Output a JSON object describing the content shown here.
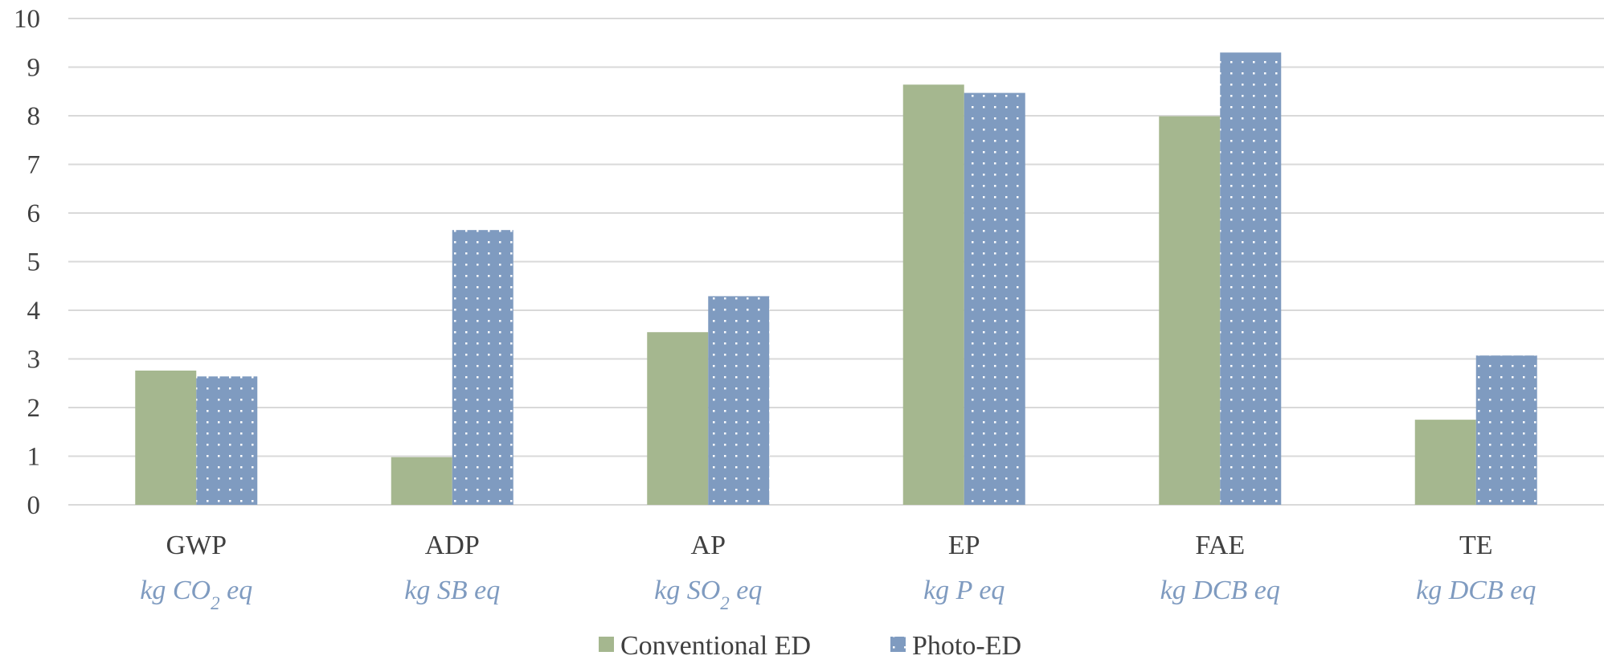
{
  "chart_data": {
    "type": "bar",
    "categories": [
      "GWP",
      "ADP",
      "AP",
      "EP",
      "FAE",
      "TE"
    ],
    "units": [
      {
        "pre": "kg CO",
        "sub": "2",
        "post": " eq"
      },
      {
        "pre": "kg SB eq",
        "sub": "",
        "post": ""
      },
      {
        "pre": "kg SO",
        "sub": "2",
        "post": " eq"
      },
      {
        "pre": "kg P eq",
        "sub": "",
        "post": ""
      },
      {
        "pre": "kg DCB eq",
        "sub": "",
        "post": ""
      },
      {
        "pre": "kg DCB eq",
        "sub": "",
        "post": ""
      }
    ],
    "series": [
      {
        "name": "Conventional ED",
        "color": "#a5b78f",
        "pattern": "solid",
        "values": [
          2.76,
          0.98,
          3.55,
          8.64,
          7.99,
          1.75
        ]
      },
      {
        "name": "Photo-ED",
        "color": "#7f9bc0",
        "pattern": "dotted",
        "values": [
          2.64,
          5.65,
          4.29,
          8.47,
          9.3,
          3.07
        ]
      }
    ],
    "ylim": [
      0,
      10
    ],
    "yticks": [
      "0",
      "1",
      "2",
      "3",
      "4",
      "5",
      "6",
      "7",
      "8",
      "9",
      "10"
    ],
    "grid": true,
    "legend_position": "bottom"
  }
}
